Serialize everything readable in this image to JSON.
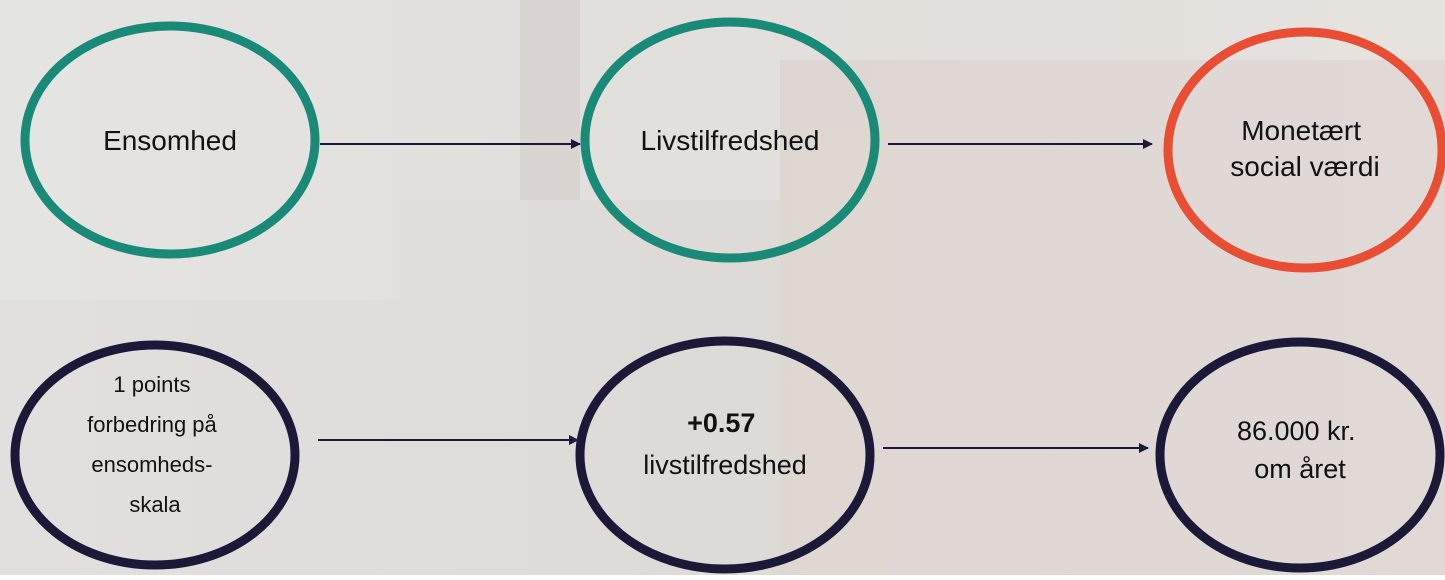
{
  "nodes": [
    {
      "lines": [
        "Ensomhed"
      ]
    },
    {
      "lines": [
        "Livstilfredshed"
      ]
    },
    {
      "lines": [
        "Monetært",
        "social værdi"
      ]
    },
    {
      "lines": [
        "1 points",
        "forbedring på",
        "ensomheds-",
        "skala"
      ]
    },
    {
      "lines": [
        "+0.57",
        "livstilfredshed"
      ]
    },
    {
      "lines": [
        "86.000 kr.",
        "om året"
      ]
    }
  ]
}
